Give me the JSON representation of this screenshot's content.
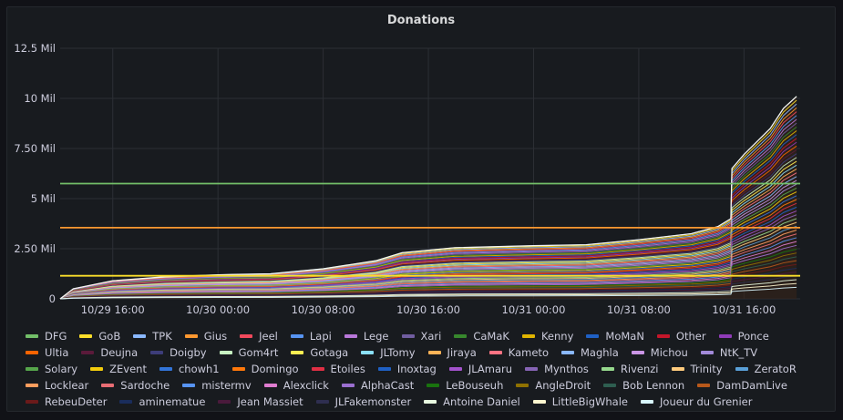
{
  "panel": {
    "title": "Donations"
  },
  "chart_data": {
    "type": "line",
    "title": "Donations",
    "y_ticks": [
      "0",
      "2.50 Mil",
      "5 Mil",
      "7.50 Mil",
      "10 Mil",
      "12.5 Mil"
    ],
    "ylim": [
      0,
      12500000
    ],
    "x_ticks": [
      "10/29 16:00",
      "10/30 00:00",
      "10/30 08:00",
      "10/30 16:00",
      "10/31 00:00",
      "10/31 08:00",
      "10/31 16:00"
    ],
    "grid": true,
    "thresholds": [
      {
        "value": 5750000,
        "color": "#73bf69"
      },
      {
        "value": 3550000,
        "color": "#ff9830"
      },
      {
        "value": 1150000,
        "color": "#fade2a"
      }
    ],
    "total_points": {
      "x": [
        "10/29 12:00",
        "10/29 13:00",
        "10/29 16:00",
        "10/29 20:00",
        "10/30 00:00",
        "10/30 04:00",
        "10/30 08:00",
        "10/30 12:00",
        "10/30 14:00",
        "10/30 18:00",
        "10/31 00:00",
        "10/31 04:00",
        "10/31 08:00",
        "10/31 12:00",
        "10/31 14:00",
        "10/31 15:00",
        "10/31 15:05",
        "10/31 16:00",
        "10/31 18:00",
        "10/31 19:00",
        "10/31 20:00"
      ],
      "y": [
        0,
        500000,
        900000,
        1100000,
        1200000,
        1250000,
        1500000,
        1900000,
        2300000,
        2550000,
        2650000,
        2700000,
        2950000,
        3250000,
        3600000,
        4000000,
        6500000,
        7200000,
        8500000,
        9500000,
        10100000
      ]
    },
    "legend_position": "bottom",
    "series": [
      {
        "name": "DFG",
        "color": "#73bf69"
      },
      {
        "name": "GoB",
        "color": "#fade2a"
      },
      {
        "name": "TPK",
        "color": "#8ab8ff"
      },
      {
        "name": "Gius",
        "color": "#ff9830"
      },
      {
        "name": "Jeel",
        "color": "#f2495c"
      },
      {
        "name": "Lapi",
        "color": "#5794f2"
      },
      {
        "name": "Lege",
        "color": "#b877d9"
      },
      {
        "name": "Xari",
        "color": "#705da0"
      },
      {
        "name": "CaMaK",
        "color": "#37872d"
      },
      {
        "name": "Kenny",
        "color": "#e0b400"
      },
      {
        "name": "MoMaN",
        "color": "#1f60c4"
      },
      {
        "name": "Other",
        "color": "#c4162a"
      },
      {
        "name": "Ponce",
        "color": "#8f3bb8"
      },
      {
        "name": "Ultia",
        "color": "#fa6400"
      },
      {
        "name": "Deujna",
        "color": "#5a1a3a"
      },
      {
        "name": "Doigby",
        "color": "#3d3d7a"
      },
      {
        "name": "Gom4rt",
        "color": "#c8f2c2"
      },
      {
        "name": "Gotaga",
        "color": "#ffee52"
      },
      {
        "name": "JLTomy",
        "color": "#8ae0f9"
      },
      {
        "name": "Jiraya",
        "color": "#ffb357"
      },
      {
        "name": "Kameto",
        "color": "#ff7383"
      },
      {
        "name": "Maghla",
        "color": "#8ab8ff"
      },
      {
        "name": "Michou",
        "color": "#ca95e5"
      },
      {
        "name": "NtK_TV",
        "color": "#a28ad9"
      },
      {
        "name": "Solary",
        "color": "#56a64b"
      },
      {
        "name": "ZEvent",
        "color": "#f2cc0c"
      },
      {
        "name": "chowh1",
        "color": "#3274d9"
      },
      {
        "name": "Domingo",
        "color": "#ff780a"
      },
      {
        "name": "Etoiles",
        "color": "#e02f44"
      },
      {
        "name": "Inoxtag",
        "color": "#1f60c4"
      },
      {
        "name": "JLAmaru",
        "color": "#a352cc"
      },
      {
        "name": "Mynthos",
        "color": "#8664b5"
      },
      {
        "name": "Rivenzi",
        "color": "#96d98d"
      },
      {
        "name": "Trinity",
        "color": "#ffcb7d"
      },
      {
        "name": "ZeratoR",
        "color": "#5aa0d8"
      },
      {
        "name": "Locklear",
        "color": "#ff9e5e"
      },
      {
        "name": "Sardoche",
        "color": "#e86d74"
      },
      {
        "name": "mistermv",
        "color": "#5794f2"
      },
      {
        "name": "Alexclick",
        "color": "#e07cd0"
      },
      {
        "name": "AlphaCast",
        "color": "#9b6fd0"
      },
      {
        "name": "LeBouseuh",
        "color": "#19730e"
      },
      {
        "name": "AngleDroit",
        "color": "#8f7100"
      },
      {
        "name": "Bob Lennon",
        "color": "#2e5e50"
      },
      {
        "name": "DamDamLive",
        "color": "#b8581a"
      },
      {
        "name": "RebeuDeter",
        "color": "#6b1a1a"
      },
      {
        "name": "aminematue",
        "color": "#1a2d5c"
      },
      {
        "name": "Jean Massiet",
        "color": "#4a1a3c"
      },
      {
        "name": "JLFakemonster",
        "color": "#2e2e50"
      },
      {
        "name": "Antoine Daniel",
        "color": "#e8f8e0"
      },
      {
        "name": "LittleBigWhale",
        "color": "#fff6d0"
      },
      {
        "name": "Joueur du Grenier",
        "color": "#d8f6ff"
      }
    ]
  }
}
